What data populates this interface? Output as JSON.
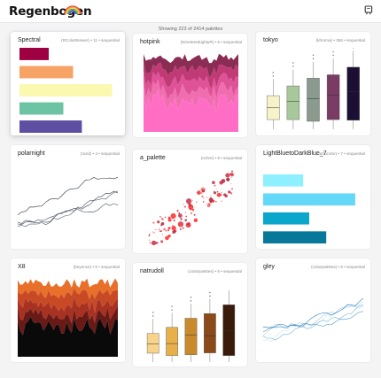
{
  "header": {
    "title": "Regenbogen",
    "logo_colors": [
      "#e8413c",
      "#f29c38",
      "#f7d84a",
      "#5cb85c",
      "#3b7dd8",
      "#7b4fb8"
    ]
  },
  "summary": "Showing 223 of 2414 palettes",
  "palettes": [
    {
      "name": "Spectral",
      "source": "(RColorBrewer)",
      "count": "11",
      "kind": "sequential",
      "colors": [
        "#9e0142",
        "#f8a366",
        "#fbf8b0",
        "#6cc4a4",
        "#5e4fa2"
      ]
    },
    {
      "name": "hotpink",
      "source": "(NineteenEightyR)",
      "count": "5",
      "kind": "sequential",
      "colors": [
        "#8a2c54",
        "#c03a76",
        "#e05297",
        "#f06eaf",
        "#ff6ec4"
      ]
    },
    {
      "name": "tokyo",
      "source": "(khroma)",
      "count": "256",
      "kind": "sequential",
      "colors": [
        "#f6f3c8",
        "#a7c89a",
        "#8a9a8e",
        "#7a3b64",
        "#1c0f34"
      ]
    },
    {
      "name": "polarnight",
      "source": "(nord)",
      "count": "4",
      "kind": "sequential",
      "colors": [
        "#4c566a",
        "#434c5e",
        "#3b4252",
        "#2e3440"
      ]
    },
    {
      "name": "a_palette",
      "source": "(ochre)",
      "count": "8",
      "kind": "sequential",
      "colors": [
        "#ff1a1a",
        "#e0242e",
        "#c4203a",
        "#a81c2e",
        "#f06464"
      ]
    },
    {
      "name": "LightBluetoDarkBlue_7",
      "source": "(rcartocolor)",
      "count": "7",
      "kind": "sequential",
      "colors": [
        "#8ef0ff",
        "#64d8f8",
        "#0aa6cc",
        "#08789a"
      ]
    },
    {
      "name": "X8",
      "source": "(beyonce)",
      "count": "6",
      "kind": "sequential",
      "colors": [
        "#e8702a",
        "#c84a24",
        "#a83222",
        "#6a1a16",
        "#0a0a0a"
      ]
    },
    {
      "name": "natrudoll",
      "source": "(colorpalettes)",
      "count": "6",
      "kind": "sequential",
      "colors": [
        "#f8d48a",
        "#e8b04a",
        "#c88a2a",
        "#8a4a1a",
        "#3a1a0a"
      ]
    },
    {
      "name": "gley",
      "source": "(colorpalettes)",
      "count": "6",
      "kind": "sequential",
      "colors": [
        "#d0e4f4",
        "#a8cce6",
        "#7ab2d6",
        "#4e98c6",
        "#2a7eb4"
      ]
    }
  ]
}
